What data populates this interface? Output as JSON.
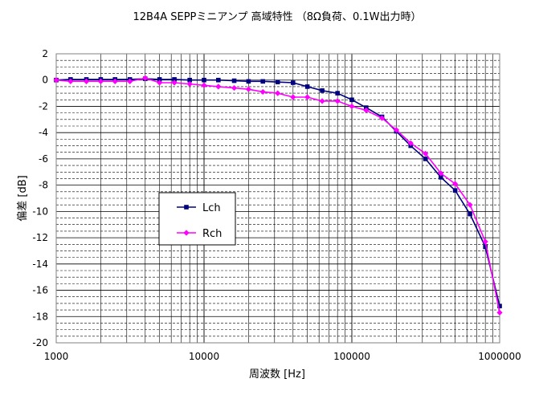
{
  "chart_data": {
    "type": "line",
    "title": "12B4A SEPPミニアンプ  高域特性 （8Ω負荷、0.1W出力時）",
    "xlabel": "周波数 [Hz]",
    "ylabel": "偏差 [dB]",
    "xscale": "log",
    "xlim": [
      1000,
      1000000
    ],
    "ylim": [
      -20,
      2
    ],
    "x_tick_labels": [
      "1000",
      "10000",
      "100000",
      "1000000"
    ],
    "y_tick_labels": [
      "2",
      "0",
      "-2",
      "-4",
      "-6",
      "-8",
      "-10",
      "-12",
      "-14",
      "-16",
      "-18",
      "-20"
    ],
    "grid": true,
    "legend_position": "left-middle",
    "series": [
      {
        "name": "Lch",
        "color": "#000080",
        "marker": "square",
        "x": [
          1000,
          1250,
          1600,
          2000,
          2500,
          3150,
          4000,
          5000,
          6300,
          8000,
          10000,
          12500,
          16000,
          20000,
          25000,
          31500,
          40000,
          50000,
          63000,
          80000,
          100000,
          125000,
          160000,
          200000,
          250000,
          315000,
          400000,
          500000,
          630000,
          800000,
          1000000
        ],
        "values": [
          0.0,
          0.05,
          0.05,
          0.05,
          0.05,
          0.05,
          0.1,
          0.05,
          0.05,
          0.0,
          0.0,
          0.0,
          -0.05,
          -0.1,
          -0.1,
          -0.15,
          -0.2,
          -0.5,
          -0.8,
          -1.0,
          -1.5,
          -2.1,
          -2.8,
          -3.9,
          -5.0,
          -6.0,
          -7.4,
          -8.4,
          -10.2,
          -12.7,
          -17.2
        ]
      },
      {
        "name": "Rch",
        "color": "#ff00ff",
        "marker": "diamond",
        "x": [
          1000,
          1250,
          1600,
          2000,
          2500,
          3150,
          4000,
          5000,
          6300,
          8000,
          10000,
          12500,
          16000,
          20000,
          25000,
          31500,
          40000,
          50000,
          63000,
          80000,
          100000,
          125000,
          160000,
          200000,
          250000,
          315000,
          400000,
          500000,
          630000,
          800000,
          1000000
        ],
        "values": [
          0.0,
          -0.1,
          -0.1,
          -0.1,
          -0.1,
          -0.1,
          0.15,
          -0.2,
          -0.2,
          -0.3,
          -0.4,
          -0.5,
          -0.6,
          -0.7,
          -0.9,
          -1.0,
          -1.3,
          -1.3,
          -1.6,
          -1.6,
          -2.0,
          -2.3,
          -2.9,
          -3.8,
          -4.8,
          -5.6,
          -7.1,
          -7.9,
          -9.5,
          -12.3,
          -17.7
        ]
      }
    ]
  }
}
